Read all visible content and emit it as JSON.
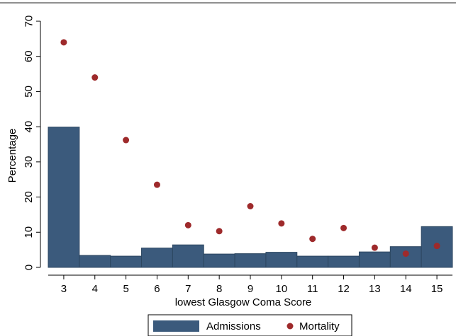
{
  "chart_data": {
    "type": "bar",
    "title": "",
    "xlabel": "lowest Glasgow Coma Score",
    "ylabel": "Percentage",
    "categories": [
      "3",
      "4",
      "5",
      "6",
      "7",
      "8",
      "9",
      "10",
      "11",
      "12",
      "13",
      "14",
      "15"
    ],
    "ylim": [
      0,
      70
    ],
    "yticks": [
      0,
      10,
      20,
      30,
      40,
      50,
      60,
      70
    ],
    "grid": false,
    "legend_position": "bottom",
    "series": [
      {
        "name": "Admissions",
        "type": "bar",
        "color": "#3b5a7c",
        "values": [
          39.9,
          3.4,
          3.2,
          5.5,
          6.4,
          3.8,
          3.9,
          4.3,
          3.2,
          3.2,
          4.4,
          5.9,
          11.6
        ]
      },
      {
        "name": "Mortality",
        "type": "scatter",
        "color": "#9e2a2b",
        "values": [
          64.0,
          54.0,
          36.2,
          23.5,
          12.0,
          10.3,
          17.4,
          12.5,
          8.1,
          11.2,
          5.6,
          3.9,
          6.1
        ]
      }
    ]
  }
}
